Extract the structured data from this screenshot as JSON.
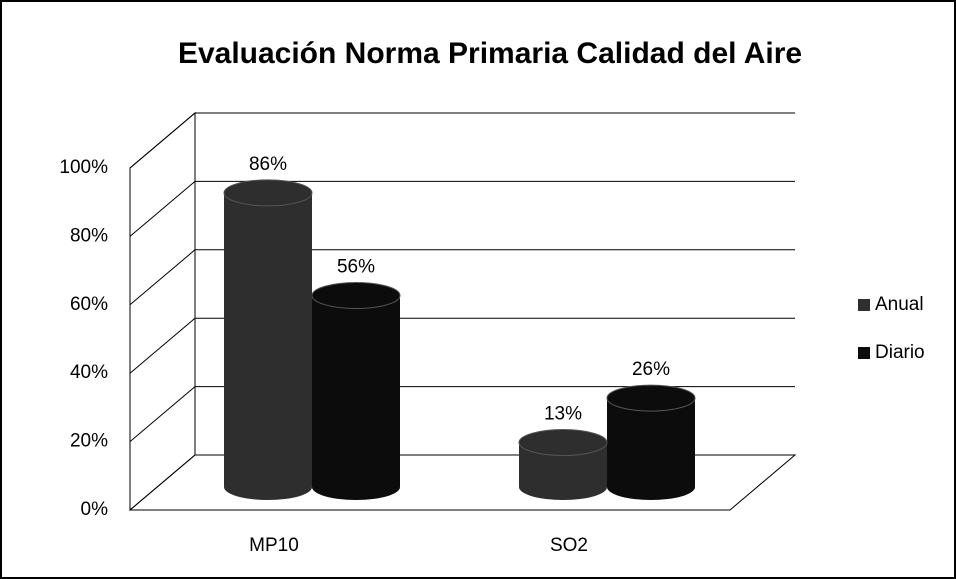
{
  "chart_data": {
    "type": "bar3d",
    "title": "Evaluación Norma Primaria Calidad del Aire",
    "categories": [
      "MP10",
      "SO2"
    ],
    "series": [
      {
        "name": "Anual",
        "color": "#2e2e2e",
        "values": [
          86,
          13
        ],
        "value_labels": [
          "86%",
          "13%"
        ]
      },
      {
        "name": "Diario",
        "color": "#0c0c0c",
        "values": [
          56,
          26
        ],
        "value_labels": [
          "56%",
          "26%"
        ]
      }
    ],
    "ylim": [
      0,
      100
    ],
    "yticks": [
      {
        "value": 0,
        "label": "0%"
      },
      {
        "value": 20,
        "label": "20%"
      },
      {
        "value": 40,
        "label": "40%"
      },
      {
        "value": 60,
        "label": "60%"
      },
      {
        "value": 80,
        "label": "80%"
      },
      {
        "value": 100,
        "label": "100%"
      }
    ],
    "grid": true,
    "legend": "right"
  }
}
